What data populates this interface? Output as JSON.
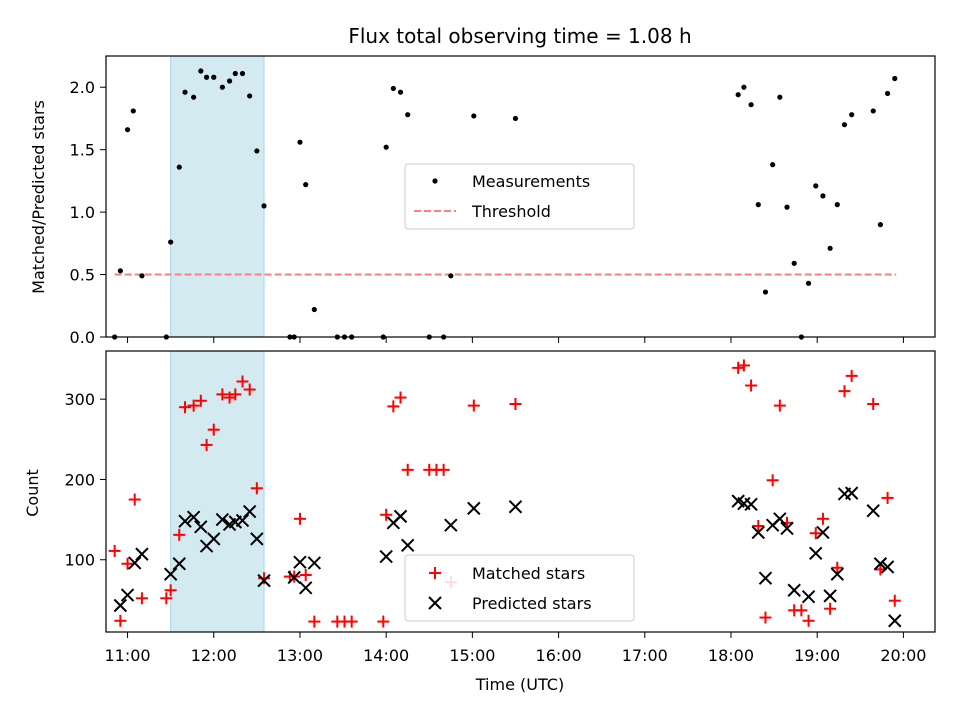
{
  "colors": {
    "measurement": "#000000",
    "threshold": "#ff7f7f",
    "matched": "#ff0000",
    "predicted": "#000000",
    "highlight_fill": "#d4eaf1",
    "highlight_edge": "#a8d8e6"
  },
  "chart_data": [
    {
      "type": "scatter",
      "title": "Flux total observing time = 1.08 h",
      "xlabel": "",
      "ylabel": "Matched/Predicted stars",
      "xlim": [
        "10:45",
        "20:22"
      ],
      "ylim": [
        0,
        2.25
      ],
      "yticks": [
        "0.0",
        "0.5",
        "1.0",
        "1.5",
        "2.0"
      ],
      "shaded_interval": [
        "11:30",
        "12:35"
      ],
      "legend": {
        "position": "center",
        "entries": [
          "Measurements",
          "Threshold"
        ]
      },
      "series": [
        {
          "name": "Measurements",
          "points": [
            [
              "10:51",
              0.0
            ],
            [
              "10:55",
              0.53
            ],
            [
              "11:00",
              1.66
            ],
            [
              "11:04",
              1.81
            ],
            [
              "11:10",
              0.49
            ],
            [
              "11:27",
              0.0
            ],
            [
              "11:30",
              0.76
            ],
            [
              "11:36",
              1.36
            ],
            [
              "11:40",
              1.96
            ],
            [
              "11:46",
              1.92
            ],
            [
              "11:51",
              2.13
            ],
            [
              "11:55",
              2.08
            ],
            [
              "12:00",
              2.08
            ],
            [
              "12:06",
              2.0
            ],
            [
              "12:11",
              2.05
            ],
            [
              "12:15",
              2.11
            ],
            [
              "12:20",
              2.11
            ],
            [
              "12:25",
              1.93
            ],
            [
              "12:30",
              1.49
            ],
            [
              "12:35",
              1.05
            ],
            [
              "12:53",
              0.0
            ],
            [
              "12:56",
              0.0
            ],
            [
              "13:00",
              1.56
            ],
            [
              "13:04",
              1.22
            ],
            [
              "13:10",
              0.22
            ],
            [
              "13:26",
              0.0
            ],
            [
              "13:31",
              0.0
            ],
            [
              "13:36",
              0.0
            ],
            [
              "13:58",
              0.0
            ],
            [
              "14:00",
              1.52
            ],
            [
              "14:05",
              1.99
            ],
            [
              "14:10",
              1.96
            ],
            [
              "14:15",
              1.78
            ],
            [
              "14:30",
              0.0
            ],
            [
              "14:40",
              0.0
            ],
            [
              "14:45",
              0.49
            ],
            [
              "15:01",
              1.77
            ],
            [
              "15:30",
              1.75
            ],
            [
              "18:05",
              1.94
            ],
            [
              "18:09",
              2.0
            ],
            [
              "18:14",
              1.86
            ],
            [
              "18:19",
              1.06
            ],
            [
              "18:24",
              0.36
            ],
            [
              "18:29",
              1.38
            ],
            [
              "18:34",
              1.92
            ],
            [
              "18:39",
              1.04
            ],
            [
              "18:44",
              0.59
            ],
            [
              "18:49",
              0.0
            ],
            [
              "18:54",
              0.43
            ],
            [
              "18:59",
              1.21
            ],
            [
              "19:04",
              1.13
            ],
            [
              "19:09",
              0.71
            ],
            [
              "19:14",
              1.06
            ],
            [
              "19:19",
              1.7
            ],
            [
              "19:24",
              1.78
            ],
            [
              "19:39",
              1.81
            ],
            [
              "19:44",
              0.9
            ],
            [
              "19:49",
              1.95
            ],
            [
              "19:54",
              2.07
            ]
          ]
        },
        {
          "name": "Threshold",
          "points": [
            [
              "10:51",
              0.5
            ],
            [
              "19:55",
              0.5
            ]
          ]
        }
      ]
    },
    {
      "type": "scatter",
      "title": "",
      "xlabel": "Time (UTC)",
      "ylabel": "Count",
      "xlim": [
        "10:45",
        "20:22"
      ],
      "ylim": [
        10,
        360
      ],
      "xticks": [
        "11:00",
        "12:00",
        "13:00",
        "14:00",
        "15:00",
        "16:00",
        "17:00",
        "18:00",
        "19:00",
        "20:00"
      ],
      "yticks": [
        "100",
        "200",
        "300"
      ],
      "shaded_interval": [
        "11:30",
        "12:35"
      ],
      "legend": {
        "position": "lower center",
        "entries": [
          "Matched stars",
          "Predicted stars"
        ]
      },
      "series": [
        {
          "name": "Matched stars",
          "points": [
            [
              "10:51",
              111
            ],
            [
              "10:55",
              24
            ],
            [
              "11:00",
              95
            ],
            [
              "11:05",
              175
            ],
            [
              "11:10",
              52
            ],
            [
              "11:27",
              52
            ],
            [
              "11:30",
              62
            ],
            [
              "11:36",
              131
            ],
            [
              "11:40",
              290
            ],
            [
              "11:46",
              292
            ],
            [
              "11:51",
              298
            ],
            [
              "11:55",
              243
            ],
            [
              "12:00",
              262
            ],
            [
              "12:06",
              306
            ],
            [
              "12:11",
              302
            ],
            [
              "12:15",
              306
            ],
            [
              "12:20",
              322
            ],
            [
              "12:25",
              312
            ],
            [
              "12:30",
              189
            ],
            [
              "12:35",
              77
            ],
            [
              "12:53",
              79
            ],
            [
              "12:56",
              79
            ],
            [
              "13:00",
              151
            ],
            [
              "13:04",
              81
            ],
            [
              "13:10",
              23
            ],
            [
              "13:26",
              23
            ],
            [
              "13:31",
              23
            ],
            [
              "13:36",
              23
            ],
            [
              "13:58",
              23
            ],
            [
              "14:00",
              156
            ],
            [
              "14:05",
              291
            ],
            [
              "14:10",
              302
            ],
            [
              "14:15",
              212
            ],
            [
              "14:30",
              212
            ],
            [
              "14:35",
              212
            ],
            [
              "14:40",
              212
            ],
            [
              "14:45",
              72
            ],
            [
              "15:01",
              292
            ],
            [
              "15:30",
              294
            ],
            [
              "18:05",
              339
            ],
            [
              "18:09",
              342
            ],
            [
              "18:14",
              317
            ],
            [
              "18:19",
              142
            ],
            [
              "18:24",
              28
            ],
            [
              "18:29",
              199
            ],
            [
              "18:34",
              292
            ],
            [
              "18:39",
              146
            ],
            [
              "18:44",
              37
            ],
            [
              "18:49",
              37
            ],
            [
              "18:54",
              24
            ],
            [
              "18:59",
              133
            ],
            [
              "19:04",
              151
            ],
            [
              "19:09",
              39
            ],
            [
              "19:14",
              90
            ],
            [
              "19:19",
              310
            ],
            [
              "19:24",
              329
            ],
            [
              "19:39",
              294
            ],
            [
              "19:44",
              88
            ],
            [
              "19:49",
              177
            ],
            [
              "19:54",
              49
            ]
          ]
        },
        {
          "name": "Predicted stars",
          "points": [
            [
              "10:55",
              43
            ],
            [
              "11:00",
              56
            ],
            [
              "11:05",
              96
            ],
            [
              "11:10",
              107
            ],
            [
              "11:30",
              82
            ],
            [
              "11:36",
              95
            ],
            [
              "11:40",
              148
            ],
            [
              "11:46",
              153
            ],
            [
              "11:51",
              141
            ],
            [
              "11:55",
              117
            ],
            [
              "12:00",
              126
            ],
            [
              "12:06",
              150
            ],
            [
              "12:11",
              144
            ],
            [
              "12:15",
              147
            ],
            [
              "12:20",
              149
            ],
            [
              "12:25",
              160
            ],
            [
              "12:30",
              126
            ],
            [
              "12:35",
              74
            ],
            [
              "12:56",
              78
            ],
            [
              "13:00",
              97
            ],
            [
              "13:04",
              65
            ],
            [
              "13:10",
              96
            ],
            [
              "14:00",
              104
            ],
            [
              "14:05",
              146
            ],
            [
              "14:10",
              154
            ],
            [
              "14:15",
              118
            ],
            [
              "14:45",
              143
            ],
            [
              "15:01",
              164
            ],
            [
              "15:30",
              166
            ],
            [
              "18:05",
              173
            ],
            [
              "18:09",
              170
            ],
            [
              "18:14",
              169
            ],
            [
              "18:19",
              134
            ],
            [
              "18:24",
              77
            ],
            [
              "18:29",
              143
            ],
            [
              "18:34",
              151
            ],
            [
              "18:39",
              139
            ],
            [
              "18:44",
              62
            ],
            [
              "18:54",
              54
            ],
            [
              "18:59",
              108
            ],
            [
              "19:04",
              134
            ],
            [
              "19:09",
              55
            ],
            [
              "19:14",
              82
            ],
            [
              "19:19",
              182
            ],
            [
              "19:24",
              183
            ],
            [
              "19:39",
              161
            ],
            [
              "19:44",
              95
            ],
            [
              "19:49",
              91
            ],
            [
              "19:54",
              24
            ]
          ]
        }
      ]
    }
  ]
}
